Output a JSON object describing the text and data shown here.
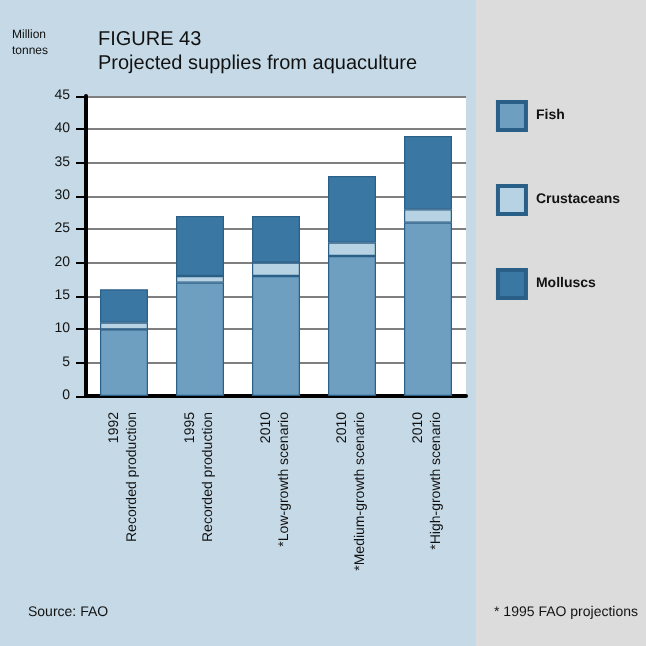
{
  "chart_data": {
    "type": "bar",
    "title": "FIGURE 43",
    "subtitle": "Projected supplies from aquaculture",
    "ylabel": "Million tonnes",
    "categories": [
      "1992\nRecorded production",
      "1995\nRecorded production",
      "2010\n*Low-growth scenario",
      "2010\n*Medium-growth scenario",
      "2010\n*High-growth scenario"
    ],
    "series": [
      {
        "name": "Fish",
        "color": "#6e9fc0",
        "values": [
          10,
          17,
          18,
          21,
          26
        ]
      },
      {
        "name": "Crustaceans",
        "color": "#b7d3e3",
        "values": [
          1,
          1,
          2,
          2,
          2
        ]
      },
      {
        "name": "Molluscs",
        "color": "#3b77a3",
        "values": [
          5,
          9,
          7,
          10,
          11
        ]
      }
    ],
    "stacked": true,
    "ylim": [
      0,
      45
    ],
    "yticks": [
      0,
      5,
      10,
      15,
      20,
      25,
      30,
      35,
      40,
      45
    ],
    "grid": "y",
    "legend": "right",
    "annotations": [
      "Source: FAO",
      "* 1995 FAO projections"
    ]
  }
}
